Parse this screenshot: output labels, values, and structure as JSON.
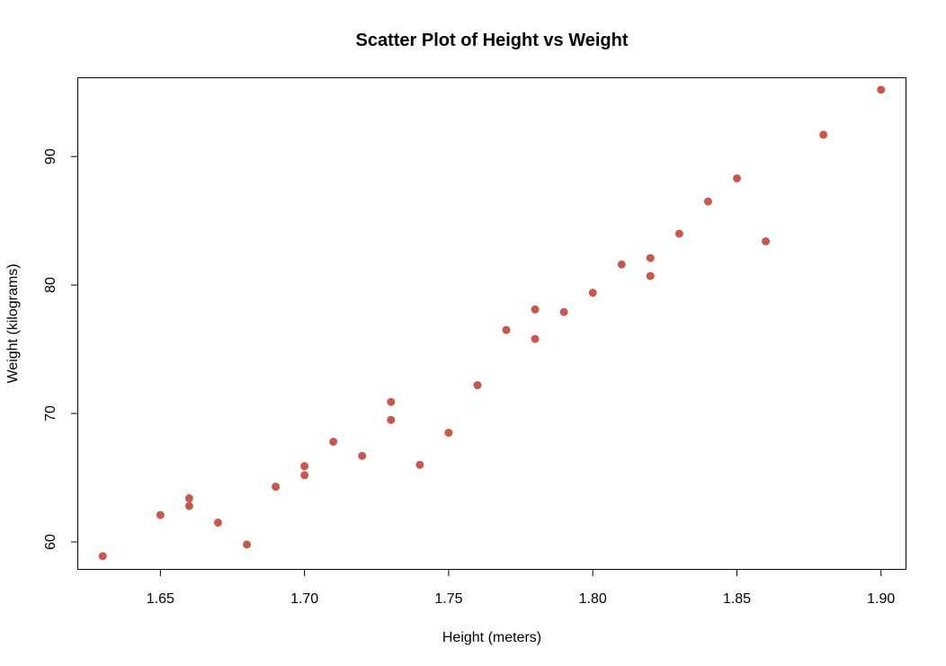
{
  "chart_data": {
    "type": "scatter",
    "title": "Scatter Plot of Height vs Weight",
    "xlabel": "Height (meters)",
    "ylabel": "Weight (kilograms)",
    "xlim": [
      1.6215,
      1.9085
    ],
    "ylim": [
      57.9,
      96.1
    ],
    "xticks": [
      1.65,
      1.7,
      1.75,
      1.8,
      1.85,
      1.9
    ],
    "xtick_labels": [
      "1.65",
      "1.70",
      "1.75",
      "1.80",
      "1.85",
      "1.90"
    ],
    "yticks": [
      60,
      70,
      80,
      90
    ],
    "ytick_labels": [
      "60",
      "70",
      "80",
      "90"
    ],
    "grid": false,
    "point_color": "#C8584A",
    "x": [
      1.63,
      1.65,
      1.66,
      1.66,
      1.67,
      1.68,
      1.69,
      1.7,
      1.7,
      1.71,
      1.72,
      1.73,
      1.73,
      1.74,
      1.75,
      1.76,
      1.77,
      1.78,
      1.78,
      1.79,
      1.8,
      1.81,
      1.82,
      1.82,
      1.83,
      1.84,
      1.85,
      1.86,
      1.88,
      1.9
    ],
    "y": [
      58.9,
      62.1,
      63.4,
      62.8,
      61.5,
      59.8,
      64.3,
      65.9,
      65.2,
      67.8,
      66.7,
      70.9,
      69.5,
      66.0,
      68.5,
      72.2,
      76.5,
      78.1,
      75.8,
      77.9,
      79.4,
      81.6,
      82.1,
      80.7,
      84.0,
      86.5,
      88.3,
      83.4,
      91.7,
      95.2
    ]
  }
}
